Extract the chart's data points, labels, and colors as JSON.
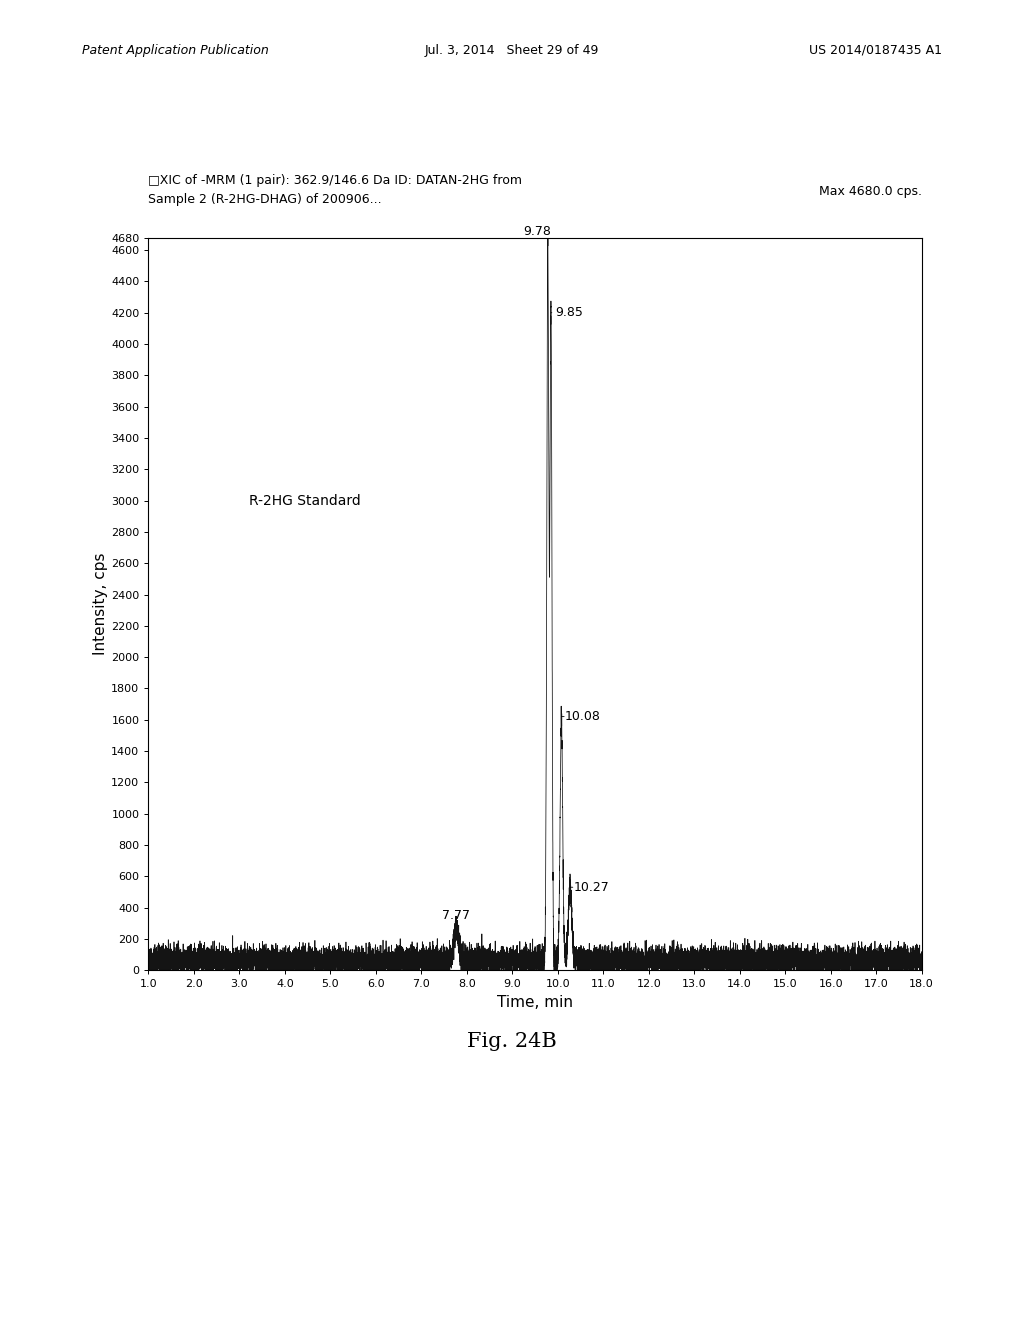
{
  "title_line1": "□XIC of -MRM (1 pair): 362.9/146.6 Da ID: DATAN-2HG from",
  "title_line2": "Sample 2 (R-2HG-DHAG) of 200906...",
  "max_label": "Max 4680.0 cps.",
  "annotation_label": "R-2HG Standard",
  "xlabel": "Time, min",
  "ylabel": "Intensity, cps",
  "figure_label": "Fig. 24B",
  "header_left": "Patent Application Publication",
  "header_center": "Jul. 3, 2014   Sheet 29 of 49",
  "header_right": "US 2014/0187435 A1",
  "xmin": 1.0,
  "xmax": 18.0,
  "ymin": 0,
  "ymax": 4680,
  "yticks": [
    0,
    200,
    400,
    600,
    800,
    1000,
    1200,
    1400,
    1600,
    1800,
    2000,
    2200,
    2400,
    2600,
    2800,
    3000,
    3200,
    3400,
    3600,
    3800,
    4000,
    4200,
    4400,
    4600,
    4680
  ],
  "ytick_labels": [
    "0",
    "200",
    "400",
    "600",
    "800",
    "1000",
    "1200",
    "1400",
    "1600",
    "1800",
    "2000",
    "2200",
    "2400",
    "2600",
    "2800",
    "3000",
    "3200",
    "3400",
    "3600",
    "3800",
    "4000",
    "4200",
    "4400",
    "4600",
    "4680"
  ],
  "xticks": [
    1.0,
    2.0,
    3.0,
    4.0,
    5.0,
    6.0,
    7.0,
    8.0,
    9.0,
    10.0,
    11.0,
    12.0,
    13.0,
    14.0,
    15.0,
    16.0,
    17.0,
    18.0
  ],
  "xtick_labels": [
    "1.0",
    "2.0",
    "3.0",
    "4.0",
    "5.0",
    "6.0",
    "7.0",
    "8.0",
    "9.0",
    "10.0",
    "11.0",
    "12.0",
    "13.0",
    "14.0",
    "15.0",
    "16.0",
    "17.0",
    "18.0"
  ],
  "noise_level": 60,
  "noise_amplitude": 35,
  "background_color": "#ffffff",
  "line_color": "#000000"
}
